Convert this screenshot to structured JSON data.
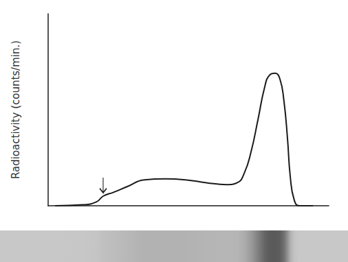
{
  "chart_data": {
    "type": "line",
    "y_label": "Radioactivity (counts/min.)",
    "x": [
      2.5,
      12.3,
      17.2,
      19.6,
      23.3,
      28.2,
      34.3,
      41.7,
      49,
      56.4,
      63.7,
      67.4,
      69.9,
      72.3,
      74.8,
      77.2,
      78.9,
      80.9,
      82.6,
      84,
      85.3,
      86.3,
      87.7,
      89.5,
      94.4
    ],
    "values": [
      0,
      0.5,
      2,
      5,
      7,
      10,
      13.5,
      14,
      13.5,
      12,
      11,
      12,
      17,
      28,
      45,
      62,
      68,
      69,
      66,
      55,
      35,
      15,
      3,
      0,
      0
    ],
    "color": "#1a1a1a",
    "xlim": [
      0,
      100
    ],
    "ylim": [
      0,
      100
    ],
    "tick_labels": false,
    "grid": false,
    "annotations": [
      {
        "x": 19.6,
        "y": 5,
        "marker": "arrow"
      }
    ]
  }
}
